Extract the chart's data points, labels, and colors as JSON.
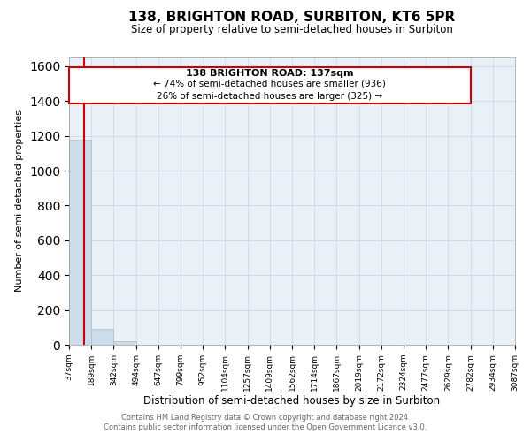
{
  "title": "138, BRIGHTON ROAD, SURBITON, KT6 5PR",
  "subtitle": "Size of property relative to semi-detached houses in Surbiton",
  "xlabel": "Distribution of semi-detached houses by size in Surbiton",
  "ylabel": "Number of semi-detached properties",
  "footer_line1": "Contains HM Land Registry data © Crown copyright and database right 2024.",
  "footer_line2": "Contains public sector information licensed under the Open Government Licence v3.0.",
  "bar_values": [
    1180,
    90,
    20,
    2,
    1,
    0,
    0,
    0,
    0,
    0,
    0,
    0,
    0,
    0,
    0,
    0,
    0,
    0,
    0,
    0
  ],
  "bar_color": "#ccdce8",
  "bar_edge_color": "#aabccc",
  "tick_labels": [
    "37sqm",
    "189sqm",
    "342sqm",
    "494sqm",
    "647sqm",
    "799sqm",
    "952sqm",
    "1104sqm",
    "1257sqm",
    "1409sqm",
    "1562sqm",
    "1714sqm",
    "1867sqm",
    "2019sqm",
    "2172sqm",
    "2324sqm",
    "2477sqm",
    "2629sqm",
    "2782sqm",
    "2934sqm",
    "3087sqm"
  ],
  "ylim": [
    0,
    1650
  ],
  "red_line_x": 0.66,
  "property_label": "138 BRIGHTON ROAD: 137sqm",
  "smaller_pct": "74%",
  "smaller_count": 936,
  "larger_pct": "26%",
  "larger_count": 325,
  "annotation_box_color": "#ffffff",
  "annotation_border_color": "#cc0000",
  "red_line_color": "#cc0000",
  "grid_color": "#d0dcec",
  "bg_color": "#e8f0f8"
}
